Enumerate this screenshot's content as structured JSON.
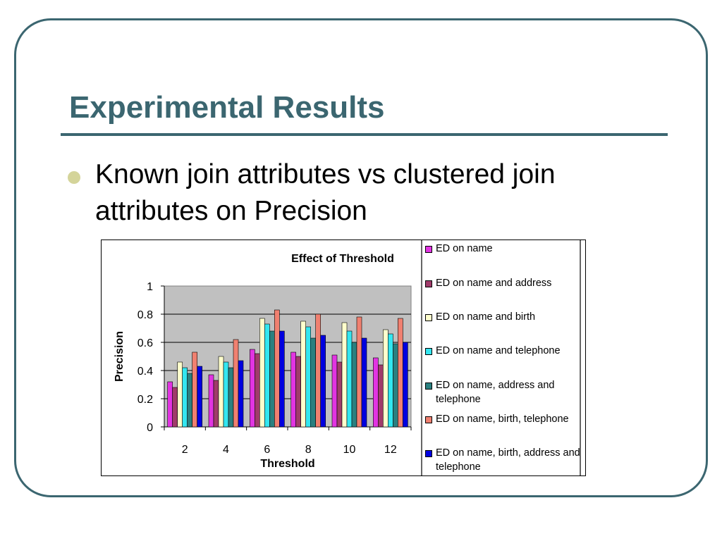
{
  "slide": {
    "title": "Experimental Results",
    "bullet": "Known join attributes vs clustered join attributes on Precision"
  },
  "colors": {
    "accent": "#3b6670",
    "bullet": "#d4d49a",
    "plot_area": "#c0c0c0"
  },
  "chart_data": {
    "type": "bar",
    "title": "Effect of Threshold",
    "xlabel": "Threshold",
    "ylabel": "Precision",
    "ylim": [
      0,
      1
    ],
    "yticks": [
      "0",
      "0.2",
      "0.4",
      "0.6",
      "0.8",
      "1"
    ],
    "categories": [
      "2",
      "4",
      "6",
      "8",
      "10",
      "12"
    ],
    "grid": true,
    "legend_position": "right",
    "series": [
      {
        "name": "ED on name",
        "color": "#e234e2",
        "values": [
          0.32,
          0.37,
          0.55,
          0.53,
          0.51,
          0.49
        ]
      },
      {
        "name": "ED on name and address",
        "color": "#a03b6a",
        "values": [
          0.28,
          0.33,
          0.52,
          0.5,
          0.46,
          0.44
        ]
      },
      {
        "name": "ED on name and birth",
        "color": "#ffffcc",
        "values": [
          0.46,
          0.5,
          0.77,
          0.75,
          0.74,
          0.69
        ]
      },
      {
        "name": "ED on name and telephone",
        "color": "#33e6f0",
        "values": [
          0.42,
          0.46,
          0.73,
          0.71,
          0.68,
          0.66
        ]
      },
      {
        "name": "ED on name, address and telephone",
        "color": "#2a8080",
        "values": [
          0.38,
          0.42,
          0.68,
          0.63,
          0.6,
          0.59
        ]
      },
      {
        "name": "ED on name, birth, telephone",
        "color": "#f08070",
        "values": [
          0.53,
          0.62,
          0.83,
          0.8,
          0.78,
          0.77
        ]
      },
      {
        "name": "ED on name, birth, address and telephone",
        "color": "#0000e0",
        "values": [
          0.43,
          0.47,
          0.68,
          0.65,
          0.63,
          0.6
        ]
      }
    ]
  }
}
